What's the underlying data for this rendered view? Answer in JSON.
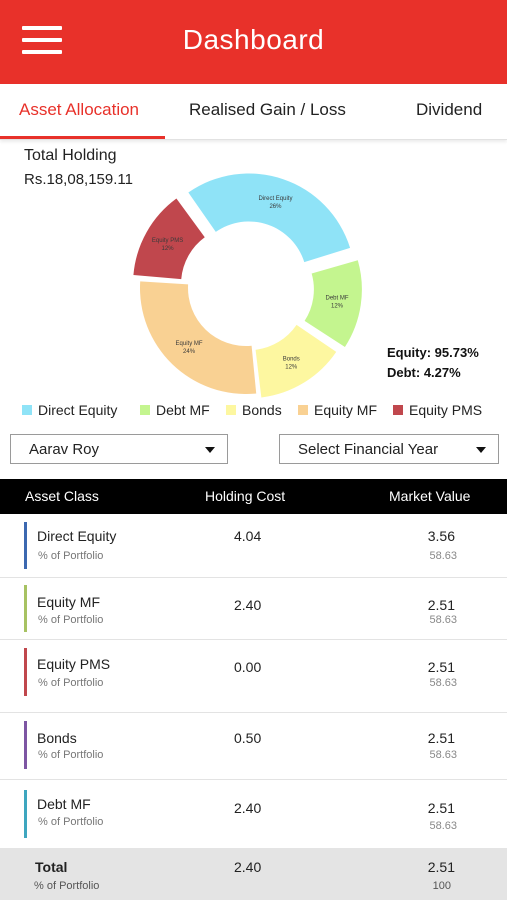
{
  "header": {
    "title": "Dashboard",
    "menu_icon": "hamburger-menu-icon"
  },
  "tabs": [
    {
      "label": "Asset Allocation",
      "active": true
    },
    {
      "label": "Realised Gain / Loss",
      "active": false
    },
    {
      "label": "Dividend",
      "active": false
    }
  ],
  "holding": {
    "label": "Total Holding",
    "value": "Rs.18,08,159.11"
  },
  "summary": {
    "equity": "Equity: 95.73%",
    "debt": "Debt: 4.27%"
  },
  "chart_data": {
    "type": "pie",
    "categories": [
      "Direct Equity",
      "Debt MF",
      "Bonds",
      "Equity MF",
      "Equity PMS"
    ],
    "values": [
      26,
      12,
      12,
      24,
      12
    ],
    "labels": [
      [
        "Direct Equity",
        "26%"
      ],
      [
        "Debt MF",
        "12%"
      ],
      [
        "Bonds",
        "12%"
      ],
      [
        "Equity MF",
        "24%"
      ],
      [
        "Equity PMS",
        "12%"
      ]
    ],
    "colors": [
      "#8fe3f7",
      "#c4f58f",
      "#fdf7a0",
      "#f9d193",
      "#c0474d"
    ]
  },
  "legend": [
    {
      "label": "Direct Equity",
      "color": "#8fe3f7"
    },
    {
      "label": "Debt MF",
      "color": "#c4f58f"
    },
    {
      "label": "Bonds",
      "color": "#fdf7a0"
    },
    {
      "label": "Equity MF",
      "color": "#f9d193"
    },
    {
      "label": "Equity PMS",
      "color": "#c0474d"
    }
  ],
  "filters": {
    "client": "Aarav Roy",
    "financial_year": "Select Financial Year"
  },
  "table": {
    "headers": [
      "Asset Class",
      "Holding Cost",
      "Market Value"
    ],
    "rows": [
      {
        "name": "Direct Equity",
        "sub": "% of Portfolio",
        "holding_cost": "4.04",
        "market_value": "3.56",
        "pct": "58.63",
        "color": "#3c68b0"
      },
      {
        "name": "Equity MF",
        "sub": "% of Portfolio",
        "holding_cost": "2.40",
        "market_value": "2.51",
        "pct": "58.63",
        "color": "#a7c262"
      },
      {
        "name": "Equity PMS",
        "sub": "% of Portfolio",
        "holding_cost": "0.00",
        "market_value": "2.51",
        "pct": "58.63",
        "color": "#c0474d"
      },
      {
        "name": "Bonds",
        "sub": "% of Portfolio",
        "holding_cost": "0.50",
        "market_value": "2.51",
        "pct": "58.63",
        "color": "#7d56a3"
      },
      {
        "name": "Debt MF",
        "sub": "% of Portfolio",
        "holding_cost": "2.40",
        "market_value": "2.51",
        "pct": "58.63",
        "color": "#3ea6bf"
      }
    ],
    "total": {
      "name": "Total",
      "sub": "% of Portfolio",
      "holding_cost": "2.40",
      "market_value": "2.51",
      "pct": "100"
    }
  }
}
